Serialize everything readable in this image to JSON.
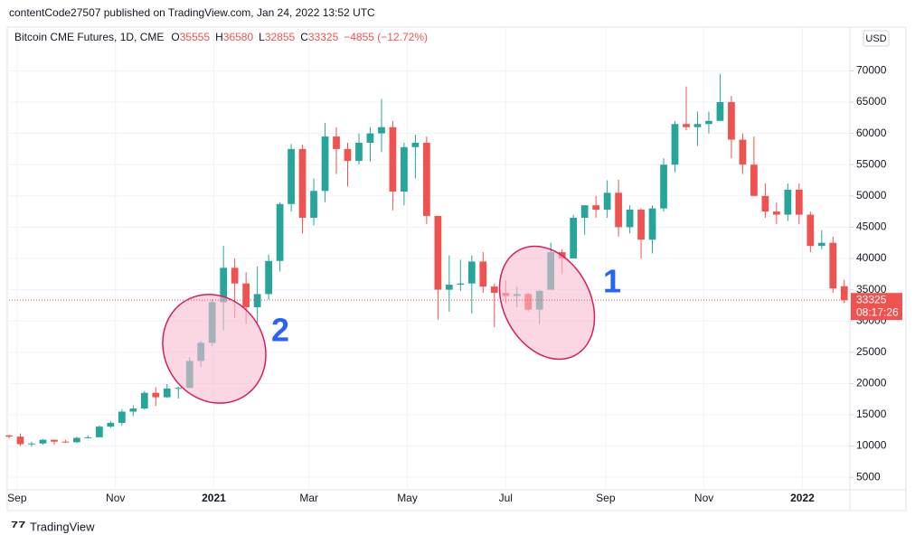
{
  "page": {
    "published": "contentCode27507 published on TradingView.com, Jan 24, 2022 13:52 UTC",
    "brand": "TradingView"
  },
  "chart_data": {
    "type": "candlestick",
    "title": "Bitcoin CME Futures, 1D, CME",
    "ohlc_legend": {
      "labels": [
        "O",
        "H",
        "L",
        "C"
      ],
      "change": "−4855 (−12.72%)"
    },
    "currency": "USD",
    "countdown": "08:17:26",
    "annotations": [
      "1",
      "2"
    ],
    "up_color": "#26a69a",
    "down_color": "#ef5350",
    "open": [
      11700,
      11500,
      10300,
      10400,
      11000,
      10700,
      10600,
      11300,
      11400,
      13100,
      13700,
      15500,
      16000,
      18500,
      17800,
      19200,
      19300,
      23600,
      26500,
      33000,
      38500,
      36000,
      32200,
      34300,
      39600,
      48700,
      57500,
      46500,
      50800,
      59500,
      57500,
      55600,
      58500,
      60000,
      61000,
      50700,
      57800,
      58500,
      46800,
      35000,
      35800,
      36000,
      39500,
      35500,
      34500,
      34000,
      34300,
      31800,
      35000,
      41000,
      40000,
      46500,
      48500,
      47800,
      50500,
      45000,
      47800,
      43000,
      48000,
      55000,
      61500,
      61000,
      61500,
      62000,
      65000,
      59000,
      55000,
      50000,
      47500,
      47000,
      51000,
      47000,
      42000,
      42500,
      35555
    ],
    "high": [
      11800,
      12000,
      10700,
      11100,
      11000,
      11000,
      11500,
      11700,
      13300,
      14000,
      15900,
      16500,
      18800,
      19400,
      19900,
      19500,
      24200,
      26800,
      33500,
      42000,
      40000,
      37800,
      38700,
      40600,
      49000,
      58300,
      58200,
      52800,
      61700,
      61000,
      58500,
      60000,
      61000,
      65500,
      62000,
      58500,
      59800,
      59500,
      46800,
      40500,
      39800,
      40500,
      41000,
      36000,
      36500,
      35500,
      34500,
      35000,
      42500,
      41500,
      47000,
      48000,
      50000,
      52500,
      52600,
      48500,
      48000,
      48500,
      56000,
      62000,
      67500,
      63500,
      63500,
      69500,
      66000,
      60000,
      59500,
      52000,
      49000,
      52000,
      52000,
      47500,
      44500,
      43500,
      36580
    ],
    "low": [
      11200,
      10000,
      9900,
      10200,
      10200,
      10500,
      10500,
      11200,
      11400,
      12900,
      13300,
      14800,
      15800,
      16400,
      17700,
      17600,
      19300,
      22600,
      26000,
      28500,
      30500,
      29500,
      29700,
      33400,
      37900,
      47500,
      44000,
      45300,
      49000,
      53500,
      51500,
      55000,
      55500,
      57000,
      47700,
      48500,
      52800,
      45500,
      30200,
      31500,
      34800,
      31200,
      34500,
      29000,
      32800,
      32200,
      31500,
      29500,
      35000,
      37500,
      40000,
      43800,
      46500,
      46500,
      43500,
      44000,
      40000,
      40800,
      47500,
      53800,
      60500,
      58000,
      60000,
      62000,
      56000,
      53500,
      50000,
      46500,
      45500,
      46000,
      45500,
      41000,
      41500,
      34500,
      32855
    ],
    "close": [
      11500,
      10300,
      10400,
      11000,
      10700,
      10600,
      11300,
      11400,
      13100,
      13700,
      15500,
      16000,
      18500,
      17800,
      19200,
      19300,
      23600,
      26500,
      33000,
      38500,
      36000,
      32200,
      34300,
      39600,
      48700,
      57500,
      46500,
      50800,
      59500,
      57500,
      55600,
      58500,
      60000,
      61000,
      50700,
      57800,
      58500,
      46800,
      35000,
      35800,
      36000,
      39500,
      35500,
      34500,
      34000,
      34300,
      31800,
      34800,
      41000,
      40000,
      46500,
      48500,
      47800,
      50500,
      45000,
      47800,
      43000,
      48000,
      55000,
      61500,
      61000,
      61500,
      62000,
      65000,
      59000,
      55000,
      50000,
      47500,
      47000,
      51000,
      47000,
      42000,
      42500,
      35200,
      33325
    ],
    "xlim": [
      0,
      74.5
    ],
    "xticks": [
      {
        "value": 0.71,
        "label": "Sep"
      },
      {
        "value": 9.43,
        "label": "Nov"
      },
      {
        "value": 18.14,
        "label": "2021"
      },
      {
        "value": 26.57,
        "label": "Mar"
      },
      {
        "value": 35.29,
        "label": "May"
      },
      {
        "value": 44,
        "label": "Jul"
      },
      {
        "value": 52.86,
        "label": "Sep"
      },
      {
        "value": 61.57,
        "label": "Nov"
      },
      {
        "value": 70.29,
        "label": "2022"
      }
    ],
    "ylim": [
      3000,
      77000
    ],
    "yticks": [
      5000,
      10000,
      15000,
      20000,
      25000,
      30000,
      35000,
      40000,
      45000,
      50000,
      55000,
      60000,
      65000,
      70000
    ],
    "grid": true
  }
}
